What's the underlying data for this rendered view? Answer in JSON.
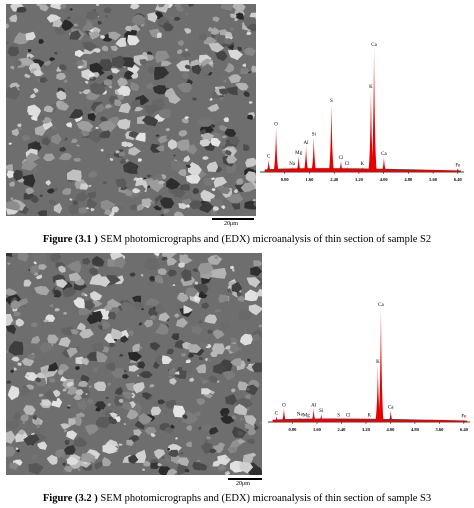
{
  "figures": [
    {
      "id": "fig-3-1",
      "caption_prefix": "Figure",
      "caption_number": "(3.1 )",
      "caption_text": "SEM photomicrographs and (EDX) microanalysis of thin section of sample S2",
      "scale_label": "20μm",
      "chart_data": {
        "type": "bar",
        "xlabel": "",
        "ylabel": "",
        "xlim": [
          0,
          6.6
        ],
        "x_ticks": [
          "0.80",
          "1.60",
          "2.40",
          "3.20",
          "4.00",
          "4.80",
          "5.60",
          "6.40"
        ],
        "peaks": [
          {
            "label": "C",
            "x": 0.28,
            "y": 0.1
          },
          {
            "label": "O",
            "x": 0.52,
            "y": 0.36
          },
          {
            "label": "Na",
            "x": 1.04,
            "y": 0.04
          },
          {
            "label": "Mg",
            "x": 1.25,
            "y": 0.13
          },
          {
            "label": "Al",
            "x": 1.49,
            "y": 0.21
          },
          {
            "label": "Si",
            "x": 1.74,
            "y": 0.28
          },
          {
            "label": "S",
            "x": 2.31,
            "y": 0.55
          },
          {
            "label": "Cl",
            "x": 2.62,
            "y": 0.09
          },
          {
            "label": "Cl",
            "x": 2.82,
            "y": 0.04
          },
          {
            "label": "K",
            "x": 3.31,
            "y": 0.04
          },
          {
            "label": "K",
            "x": 3.59,
            "y": 0.66
          },
          {
            "label": "Ca",
            "x": 3.69,
            "y": 1.0
          },
          {
            "label": "Ca",
            "x": 4.01,
            "y": 0.12
          },
          {
            "label": "Fe",
            "x": 6.4,
            "y": 0.03
          }
        ]
      }
    },
    {
      "id": "fig-3-2",
      "caption_prefix": "Figure",
      "caption_number": "(3.2 )",
      "caption_text": "SEM photomicrographs and (EDX) microanalysis of thin section of sample S3",
      "scale_label": "20μm",
      "chart_data": {
        "type": "bar",
        "xlabel": "",
        "ylabel": "",
        "xlim": [
          0,
          6.6
        ],
        "x_ticks": [
          "0.80",
          "1.60",
          "2.40",
          "3.20",
          "4.00",
          "4.80",
          "5.60",
          "6.40"
        ],
        "peaks": [
          {
            "label": "C",
            "x": 0.28,
            "y": 0.05
          },
          {
            "label": "O",
            "x": 0.52,
            "y": 0.12
          },
          {
            "label": "Na",
            "x": 1.04,
            "y": 0.04
          },
          {
            "label": "Mg",
            "x": 1.25,
            "y": 0.03
          },
          {
            "label": "Al",
            "x": 1.49,
            "y": 0.12
          },
          {
            "label": "Si",
            "x": 1.74,
            "y": 0.07
          },
          {
            "label": "S",
            "x": 2.31,
            "y": 0.03
          },
          {
            "label": "Cl",
            "x": 2.62,
            "y": 0.03
          },
          {
            "label": "K",
            "x": 3.31,
            "y": 0.03
          },
          {
            "label": "K",
            "x": 3.59,
            "y": 0.5
          },
          {
            "label": "Ca",
            "x": 3.69,
            "y": 1.0
          },
          {
            "label": "Ca",
            "x": 4.01,
            "y": 0.1
          },
          {
            "label": "Fe",
            "x": 6.4,
            "y": 0.02
          }
        ]
      }
    }
  ]
}
